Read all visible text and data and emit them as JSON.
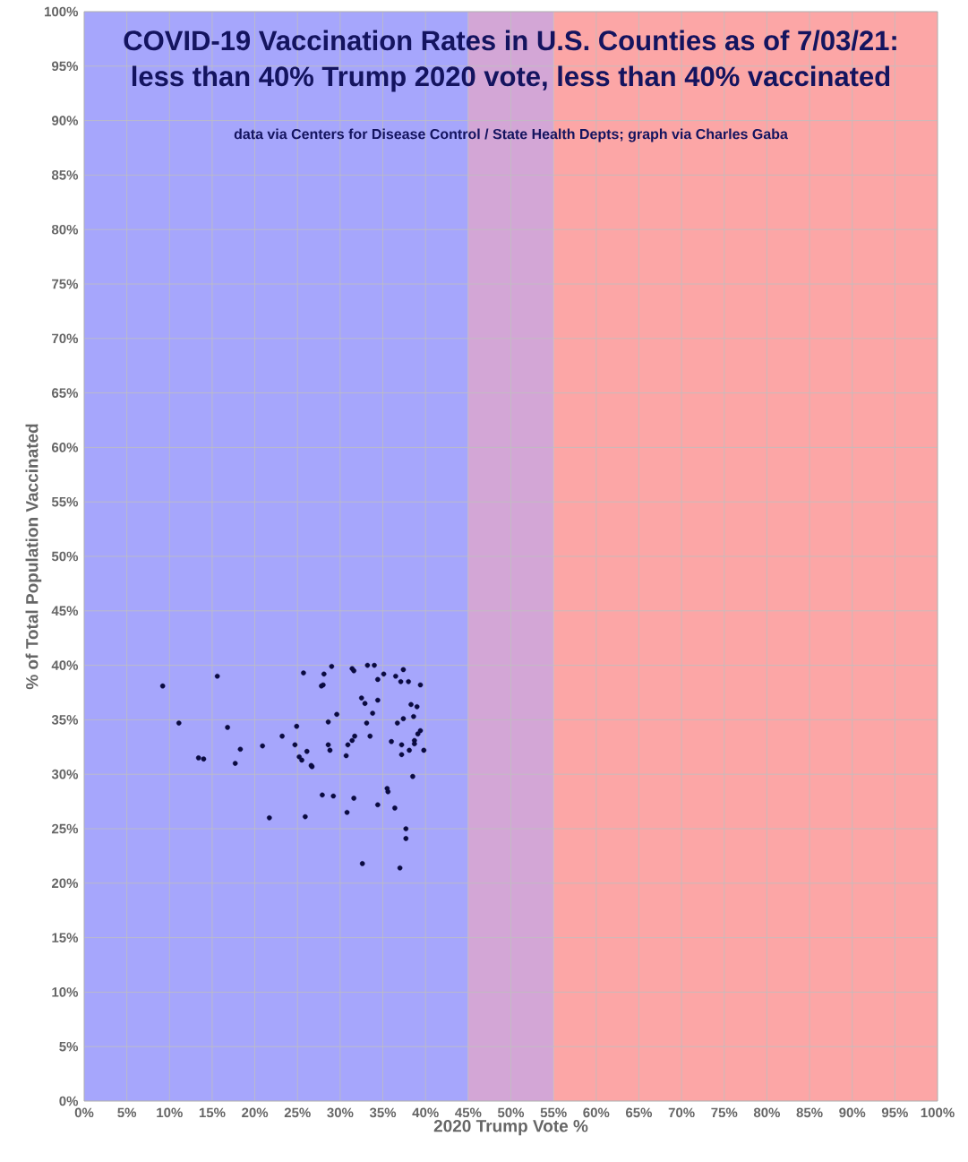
{
  "chart_data": {
    "type": "scatter",
    "title": "COVID-19 Vaccination Rates in U.S. Counties as of 7/03/21:",
    "subtitle": "less than 40% Trump 2020 vote, less than 40% vaccinated",
    "annotations": [
      "data via Centers for Disease Control / State Health Depts; graph via Charles Gaba"
    ],
    "xlabel": "2020 Trump Vote %",
    "ylabel": "% of Total Population Vaccinated",
    "xlim": [
      0,
      100
    ],
    "ylim": [
      0,
      100
    ],
    "xticks": [
      {
        "value": 0,
        "label": "0%"
      },
      {
        "value": 5,
        "label": "5%"
      },
      {
        "value": 10,
        "label": "10%"
      },
      {
        "value": 15,
        "label": "15%"
      },
      {
        "value": 20,
        "label": "20%"
      },
      {
        "value": 25,
        "label": "25%"
      },
      {
        "value": 30,
        "label": "30%"
      },
      {
        "value": 35,
        "label": "35%"
      },
      {
        "value": 40,
        "label": "40%"
      },
      {
        "value": 45,
        "label": "45%"
      },
      {
        "value": 50,
        "label": "50%"
      },
      {
        "value": 55,
        "label": "55%"
      },
      {
        "value": 60,
        "label": "60%"
      },
      {
        "value": 65,
        "label": "65%"
      },
      {
        "value": 70,
        "label": "70%"
      },
      {
        "value": 75,
        "label": "75%"
      },
      {
        "value": 80,
        "label": "80%"
      },
      {
        "value": 85,
        "label": "85%"
      },
      {
        "value": 90,
        "label": "90%"
      },
      {
        "value": 95,
        "label": "95%"
      },
      {
        "value": 100,
        "label": "100%"
      }
    ],
    "yticks": [
      {
        "value": 0,
        "label": "0%"
      },
      {
        "value": 5,
        "label": "5%"
      },
      {
        "value": 10,
        "label": "10%"
      },
      {
        "value": 15,
        "label": "15%"
      },
      {
        "value": 20,
        "label": "20%"
      },
      {
        "value": 25,
        "label": "25%"
      },
      {
        "value": 30,
        "label": "30%"
      },
      {
        "value": 35,
        "label": "35%"
      },
      {
        "value": 40,
        "label": "40%"
      },
      {
        "value": 45,
        "label": "45%"
      },
      {
        "value": 50,
        "label": "50%"
      },
      {
        "value": 55,
        "label": "55%"
      },
      {
        "value": 60,
        "label": "60%"
      },
      {
        "value": 65,
        "label": "65%"
      },
      {
        "value": 70,
        "label": "70%"
      },
      {
        "value": 75,
        "label": "75%"
      },
      {
        "value": 80,
        "label": "80%"
      },
      {
        "value": 85,
        "label": "85%"
      },
      {
        "value": 90,
        "label": "90%"
      },
      {
        "value": 95,
        "label": "95%"
      },
      {
        "value": 100,
        "label": "100%"
      }
    ],
    "grid": true,
    "marker": "circle",
    "bands": [
      {
        "axis": "x",
        "from": 0,
        "to": 45,
        "color": "#a6a6fc"
      },
      {
        "axis": "x",
        "from": 45,
        "to": 55,
        "color": "#d3a6d6"
      },
      {
        "axis": "x",
        "from": 55,
        "to": 100,
        "color": "#fca6a6"
      }
    ],
    "series": [
      {
        "color": "#0a0a40",
        "x": [
          9.2,
          15.6,
          11.1,
          13.4,
          14.0,
          16.8,
          18.3,
          17.7,
          20.9,
          23.2,
          21.7,
          25.7,
          29.0,
          28.1,
          27.8,
          28.0,
          31.4,
          31.6,
          33.2,
          34.0,
          35.1,
          34.4,
          36.5,
          37.4,
          37.1,
          38.0,
          39.4,
          32.5,
          32.9,
          34.4,
          33.8,
          29.6,
          28.6,
          24.9,
          33.1,
          33.5,
          38.3,
          39.0,
          38.6,
          37.4,
          36.7,
          39.4,
          39.1,
          38.7,
          38.7,
          36.0,
          37.2,
          38.1,
          39.8,
          37.2,
          31.7,
          31.4,
          30.9,
          30.7,
          28.6,
          28.8,
          24.7,
          26.1,
          25.2,
          25.5,
          26.6,
          26.7,
          38.5,
          35.5,
          35.6,
          27.9,
          29.2,
          31.6,
          34.4,
          36.4,
          30.8,
          25.9,
          37.7,
          37.7,
          32.6,
          37.0
        ],
        "values": [
          38.1,
          39.0,
          34.7,
          31.5,
          31.4,
          34.3,
          32.3,
          31.0,
          32.6,
          33.5,
          26.0,
          39.3,
          39.9,
          39.2,
          38.1,
          38.2,
          39.7,
          39.5,
          40.0,
          40.0,
          39.2,
          38.7,
          39.0,
          39.6,
          38.5,
          38.5,
          38.2,
          37.0,
          36.5,
          36.8,
          35.6,
          35.5,
          34.8,
          34.4,
          34.7,
          33.5,
          36.4,
          36.2,
          35.3,
          35.1,
          34.7,
          34.0,
          33.7,
          33.1,
          32.8,
          33.0,
          32.7,
          32.2,
          32.2,
          31.8,
          33.5,
          33.1,
          32.7,
          31.7,
          32.7,
          32.2,
          32.7,
          32.1,
          31.6,
          31.3,
          30.8,
          30.7,
          29.8,
          28.7,
          28.4,
          28.1,
          28.0,
          27.8,
          27.2,
          26.9,
          26.5,
          26.1,
          25.0,
          24.1,
          21.8,
          21.4
        ]
      }
    ]
  }
}
